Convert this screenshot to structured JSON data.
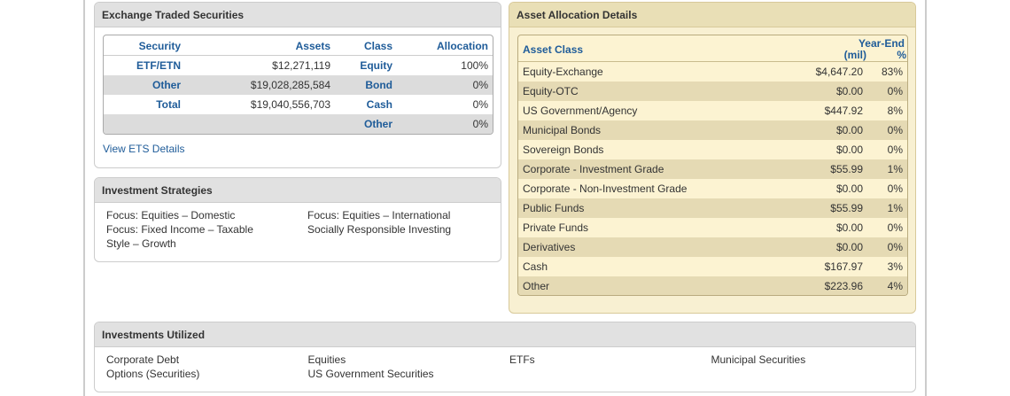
{
  "ets": {
    "title": "Exchange Traded Securities",
    "columns": [
      "Security",
      "Assets",
      "Class",
      "Allocation"
    ],
    "rows": [
      [
        "ETF/ETN",
        "$12,271,119",
        "Equity",
        "100%"
      ],
      [
        "Other",
        "$19,028,285,584",
        "Bond",
        "0%"
      ],
      [
        "Total",
        "$19,040,556,703",
        "Cash",
        "0%"
      ],
      [
        null,
        null,
        "Other",
        "0%"
      ]
    ],
    "link": "View ETS Details"
  },
  "strategies": {
    "title": "Investment Strategies",
    "items": [
      "Focus: Equities – Domestic",
      "Focus: Equities – International",
      "Focus: Fixed Income – Taxable",
      "Socially Responsible Investing",
      "Style – Growth"
    ]
  },
  "allocation": {
    "title": "Asset Allocation Details",
    "header": {
      "asset_class": "Asset Class",
      "year_end": "Year-End",
      "mil": "(mil)",
      "pct": "%"
    },
    "rows": [
      [
        "Equity-Exchange",
        "$4,647.20",
        "83%"
      ],
      [
        "Equity-OTC",
        "$0.00",
        "0%"
      ],
      [
        "US Government/Agency",
        "$447.92",
        "8%"
      ],
      [
        "Municipal Bonds",
        "$0.00",
        "0%"
      ],
      [
        "Sovereign Bonds",
        "$0.00",
        "0%"
      ],
      [
        "Corporate - Investment Grade",
        "$55.99",
        "1%"
      ],
      [
        "Corporate - Non-Investment Grade",
        "$0.00",
        "0%"
      ],
      [
        "Public Funds",
        "$55.99",
        "1%"
      ],
      [
        "Private Funds",
        "$0.00",
        "0%"
      ],
      [
        "Derivatives",
        "$0.00",
        "0%"
      ],
      [
        "Cash",
        "$167.97",
        "3%"
      ],
      [
        "Other",
        "$223.96",
        "4%"
      ]
    ]
  },
  "utilized": {
    "title": "Investments Utilized",
    "items": [
      "Corporate Debt",
      "Equities",
      "ETFs",
      "Municipal Securities",
      "Options (Securities)",
      "US Government Securities"
    ]
  }
}
